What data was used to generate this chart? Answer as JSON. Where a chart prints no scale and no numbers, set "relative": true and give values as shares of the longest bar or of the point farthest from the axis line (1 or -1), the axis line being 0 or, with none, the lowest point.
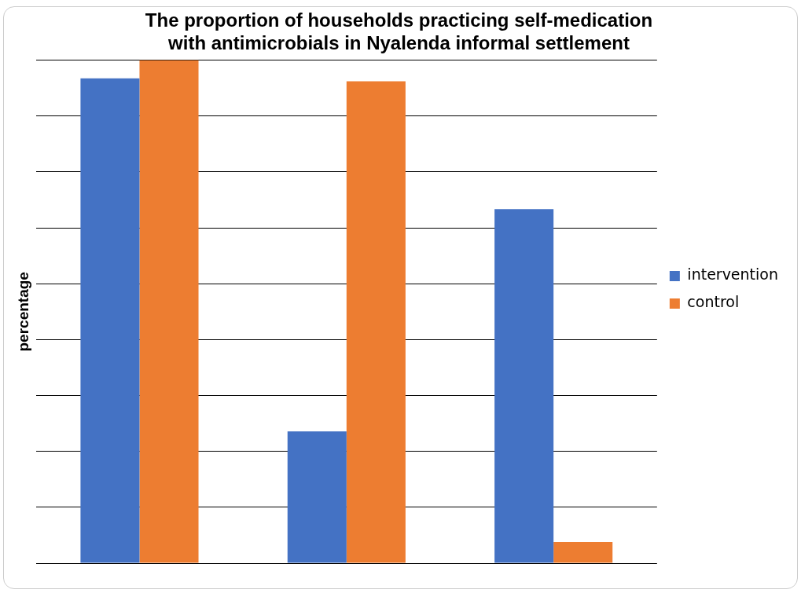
{
  "chart_data": {
    "type": "bar",
    "title": [
      "The proportion of households practicing self-medication",
      "with antimicrobials in Nyalenda informal settlement"
    ],
    "ylabel": "percentage",
    "categories": [
      null,
      null,
      null
    ],
    "relative": true,
    "grid": "y",
    "legend": "right",
    "series": [
      {
        "name": "intervention",
        "color": "#4472c4",
        "values": [
          0.964,
          0.262,
          0.704
        ]
      },
      {
        "name": "control",
        "color": "#ed7d31",
        "values": [
          1,
          0.958,
          0.042
        ]
      }
    ]
  }
}
